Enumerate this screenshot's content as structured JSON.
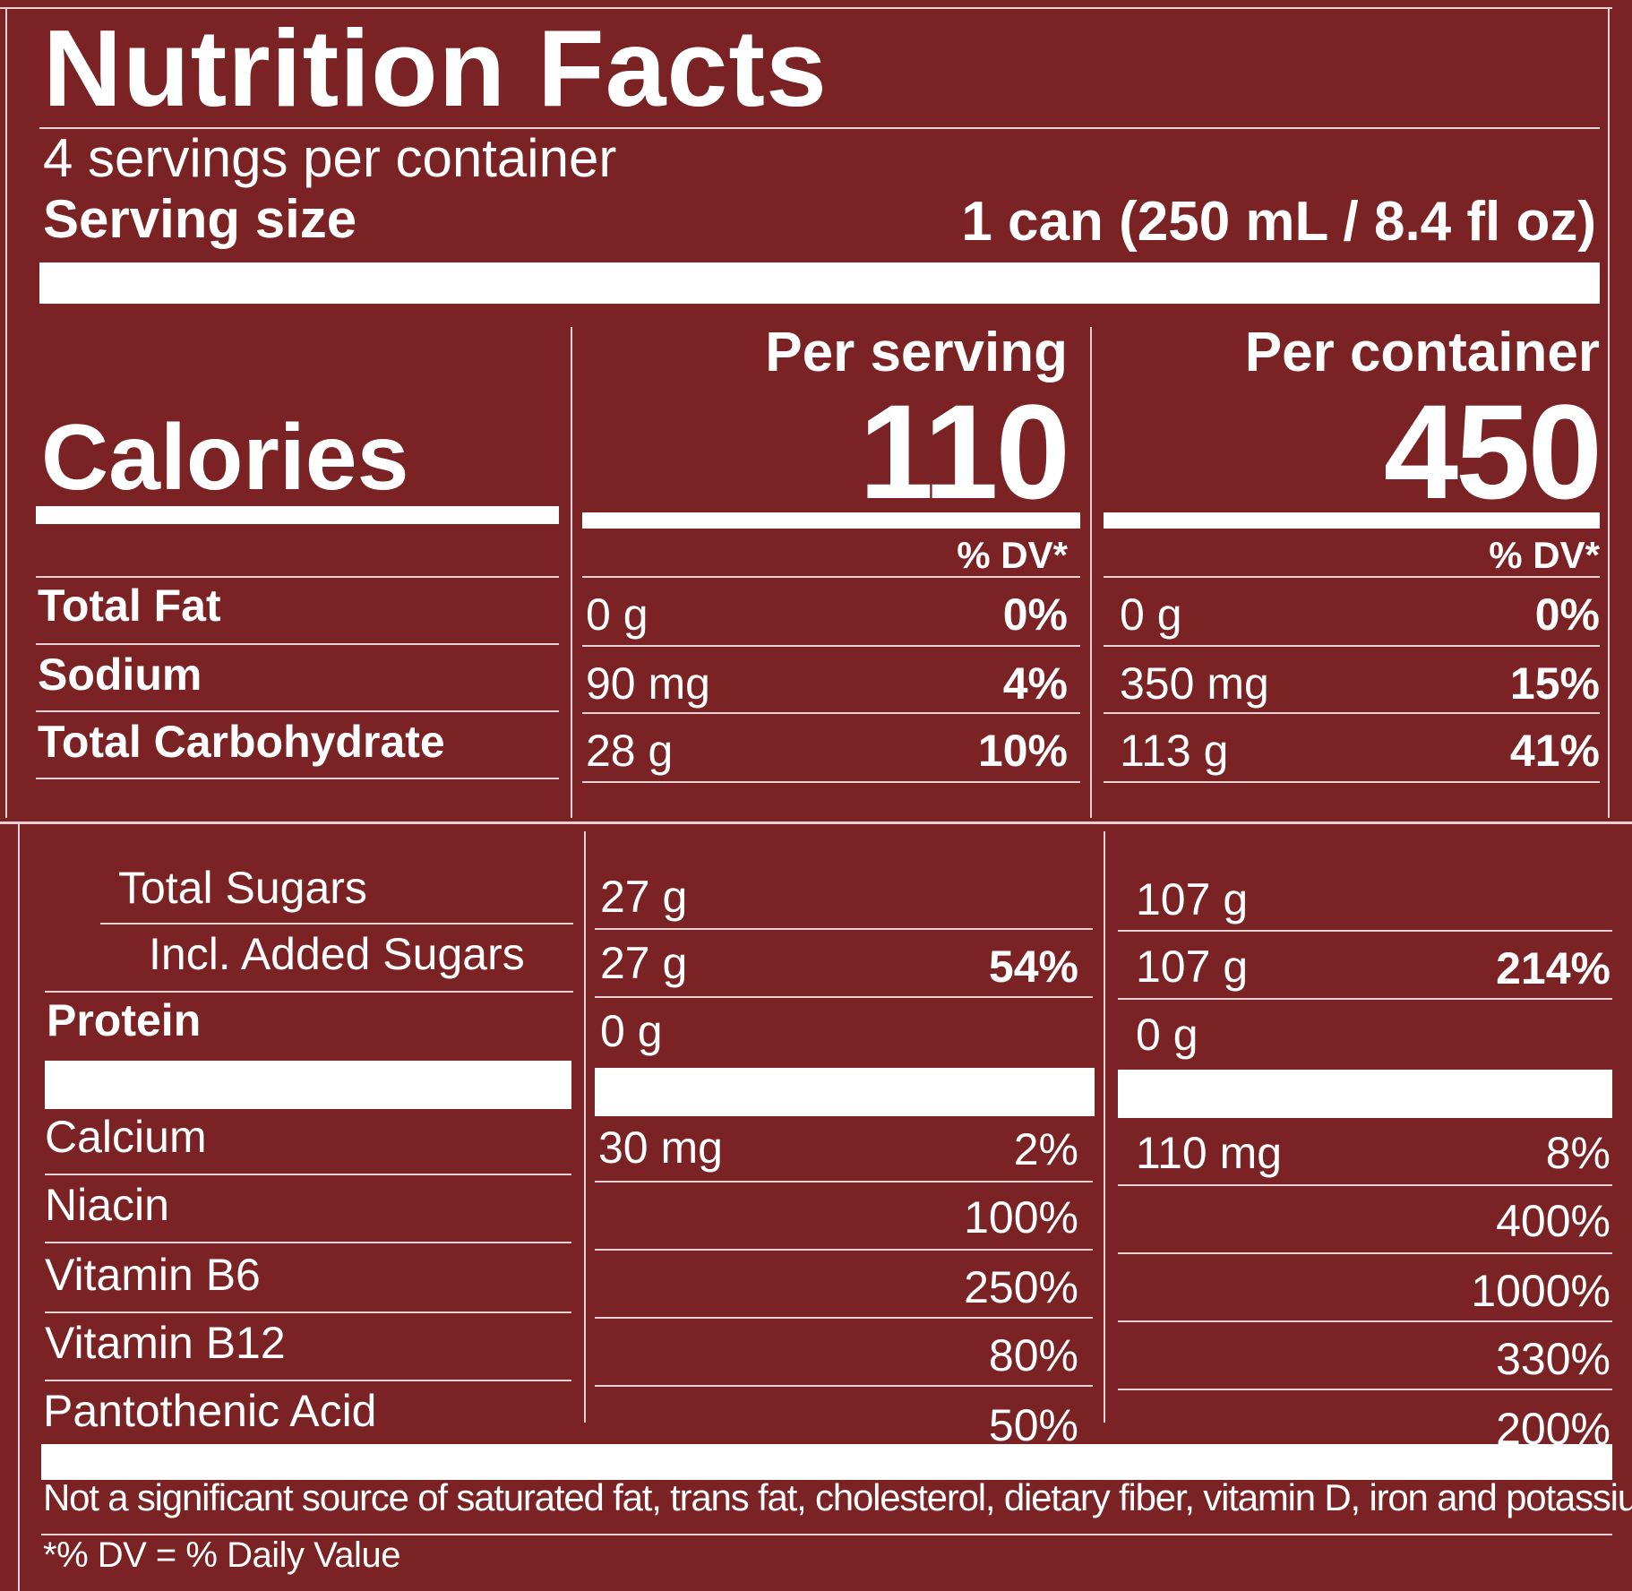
{
  "label": {
    "title": "Nutrition Facts",
    "servings_per_container": "4 servings per container",
    "serving_size_label": "Serving size",
    "serving_size_value": "1 can (250 mL / 8.4 fl oz)",
    "calories_label": "Calories",
    "per_serving_header": "Per serving",
    "per_container_header": "Per container",
    "calories_per_serving": "110",
    "calories_per_container": "450",
    "dv_header": "% DV*",
    "nutrients_top": [
      {
        "name": "Total Fat",
        "serving_amount": "0 g",
        "serving_dv": "0%",
        "container_amount": "0 g",
        "container_dv": "0%"
      },
      {
        "name": "Sodium",
        "serving_amount": "90 mg",
        "serving_dv": "4%",
        "container_amount": "350 mg",
        "container_dv": "15%"
      },
      {
        "name": "Total Carbohydrate",
        "serving_amount": "28 g",
        "serving_dv": "10%",
        "container_amount": "113 g",
        "container_dv": "41%"
      }
    ],
    "nutrients_bottom": [
      {
        "name": "Total Sugars",
        "serving_amount": "27 g",
        "serving_dv": "",
        "container_amount": "107 g",
        "container_dv": ""
      },
      {
        "name": "Incl. Added Sugars",
        "serving_amount": "27 g",
        "serving_dv": "54%",
        "container_amount": "107 g",
        "container_dv": "214%"
      },
      {
        "name": "Protein",
        "serving_amount": "0 g",
        "serving_dv": "",
        "container_amount": "0 g",
        "container_dv": ""
      }
    ],
    "vitamins": [
      {
        "name": "Calcium",
        "serving_amount": "30 mg",
        "serving_dv": "2%",
        "container_amount": "110 mg",
        "container_dv": "8%"
      },
      {
        "name": "Niacin",
        "serving_amount": "",
        "serving_dv": "100%",
        "container_amount": "",
        "container_dv": "400%"
      },
      {
        "name": "Vitamin B6",
        "serving_amount": "",
        "serving_dv": "250%",
        "container_amount": "",
        "container_dv": "1000%"
      },
      {
        "name": "Vitamin B12",
        "serving_amount": "",
        "serving_dv": "80%",
        "container_amount": "",
        "container_dv": "330%"
      },
      {
        "name": "Pantothenic Acid",
        "serving_amount": "",
        "serving_dv": "50%",
        "container_amount": "",
        "container_dv": "200%"
      }
    ],
    "footnote": "Not a significant source of saturated fat, trans fat, cholesterol, dietary fiber, vitamin D, iron and potassium.",
    "dv_footnote": "*% DV = % Daily Value"
  },
  "colors": {
    "background": "#7a2224",
    "text": "#ffffff"
  }
}
